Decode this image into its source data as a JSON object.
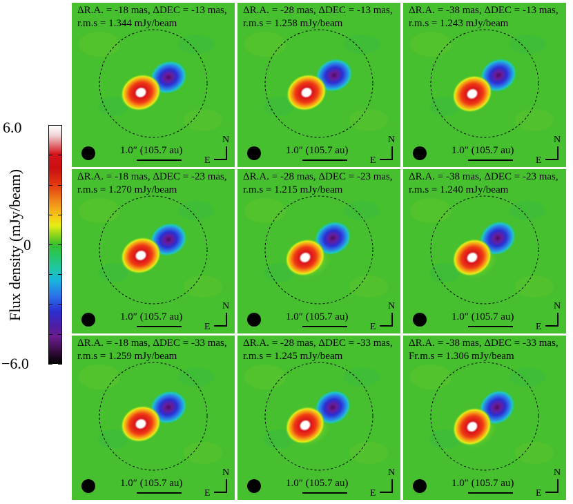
{
  "colorbar": {
    "max_label": "6.0",
    "zero_label": "0",
    "min_label": "−6.0",
    "axis_label": "Flux density (mJy/beam)",
    "colormap": [
      "#000000",
      "#6a1c8f",
      "#2a2fd3",
      "#19b6de",
      "#37c12b",
      "#e7ee14",
      "#f08a1a",
      "#d4141c",
      "#ffffff"
    ]
  },
  "panels": [
    {
      "offset": "ΔR.A. = -18 mas, ΔDEC = -13 mas,",
      "rms": "r.m.s = 1.344 mJy/beam",
      "scale": "1.0″ (105.7 au)",
      "north": "N",
      "east": "E"
    },
    {
      "offset": "ΔR.A. = -28 mas, ΔDEC = -13 mas,",
      "rms": "r.m.s = 1.258 mJy/beam",
      "scale": "1.0″ (105.7 au)",
      "north": "N",
      "east": "E"
    },
    {
      "offset": "ΔR.A. = -38 mas, ΔDEC = -13 mas,",
      "rms": "r.m.s = 1.243 mJy/beam",
      "scale": "1.0″ (105.7 au)",
      "north": "N",
      "east": "E"
    },
    {
      "offset": "ΔR.A. = -18 mas, ΔDEC = -23 mas,",
      "rms": "r.m.s = 1.270 mJy/beam",
      "scale": "1.0″ (105.7 au)",
      "north": "N",
      "east": "E"
    },
    {
      "offset": "ΔR.A. = -28 mas, ΔDEC = -23 mas,",
      "rms": "r.m.s = 1.215 mJy/beam",
      "scale": "1.0″ (105.7 au)",
      "north": "N",
      "east": "E"
    },
    {
      "offset": "ΔR.A. = -38 mas, ΔDEC = -23 mas,",
      "rms": "r.m.s = 1.240 mJy/beam",
      "scale": "1.0″ (105.7 au)",
      "north": "N",
      "east": "E"
    },
    {
      "offset": "ΔR.A. = -18 mas, ΔDEC = -33 mas,",
      "rms": "r.m.s = 1.259 mJy/beam",
      "scale": "1.0″ (105.7 au)",
      "north": "N",
      "east": "E"
    },
    {
      "offset": "ΔR.A. = -28 mas, ΔDEC = -33 mas,",
      "rms": "r.m.s = 1.245 mJy/beam",
      "scale": "1.0″ (105.7 au)",
      "north": "N",
      "east": "E"
    },
    {
      "offset": "ΔR.A. = -38 mas, ΔDEC = -33 mas,",
      "rms": "Fr.m.s = 1.306 mJy/beam",
      "scale": "1.0″ (105.7 au)",
      "north": "N",
      "east": "E"
    }
  ]
}
